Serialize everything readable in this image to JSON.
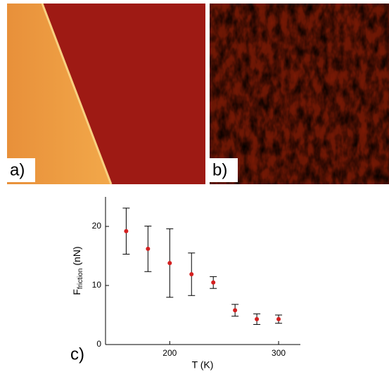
{
  "panels": [
    {
      "label": "a)"
    },
    {
      "label": "b)"
    }
  ],
  "chart_data": {
    "type": "scatter",
    "panel_label": "c)",
    "x_label": "T (K)",
    "y_label": {
      "main": "F",
      "sub": "friction",
      "unit": "(nN)"
    },
    "x": [
      160,
      180,
      200,
      220,
      240,
      260,
      280,
      300
    ],
    "series": [
      {
        "color": "#d42020",
        "error_color": "#000000",
        "values": [
          19.2,
          16.2,
          13.8,
          11.9,
          10.5,
          5.8,
          4.3,
          4.3
        ],
        "errors": [
          3.9,
          3.85,
          5.8,
          3.6,
          1.0,
          1.0,
          0.9,
          0.7
        ]
      }
    ],
    "xlim": [
      141,
      320
    ],
    "ylim": [
      0,
      25
    ],
    "xticks": [
      200,
      300
    ],
    "yticks": [
      0,
      10,
      20
    ]
  }
}
